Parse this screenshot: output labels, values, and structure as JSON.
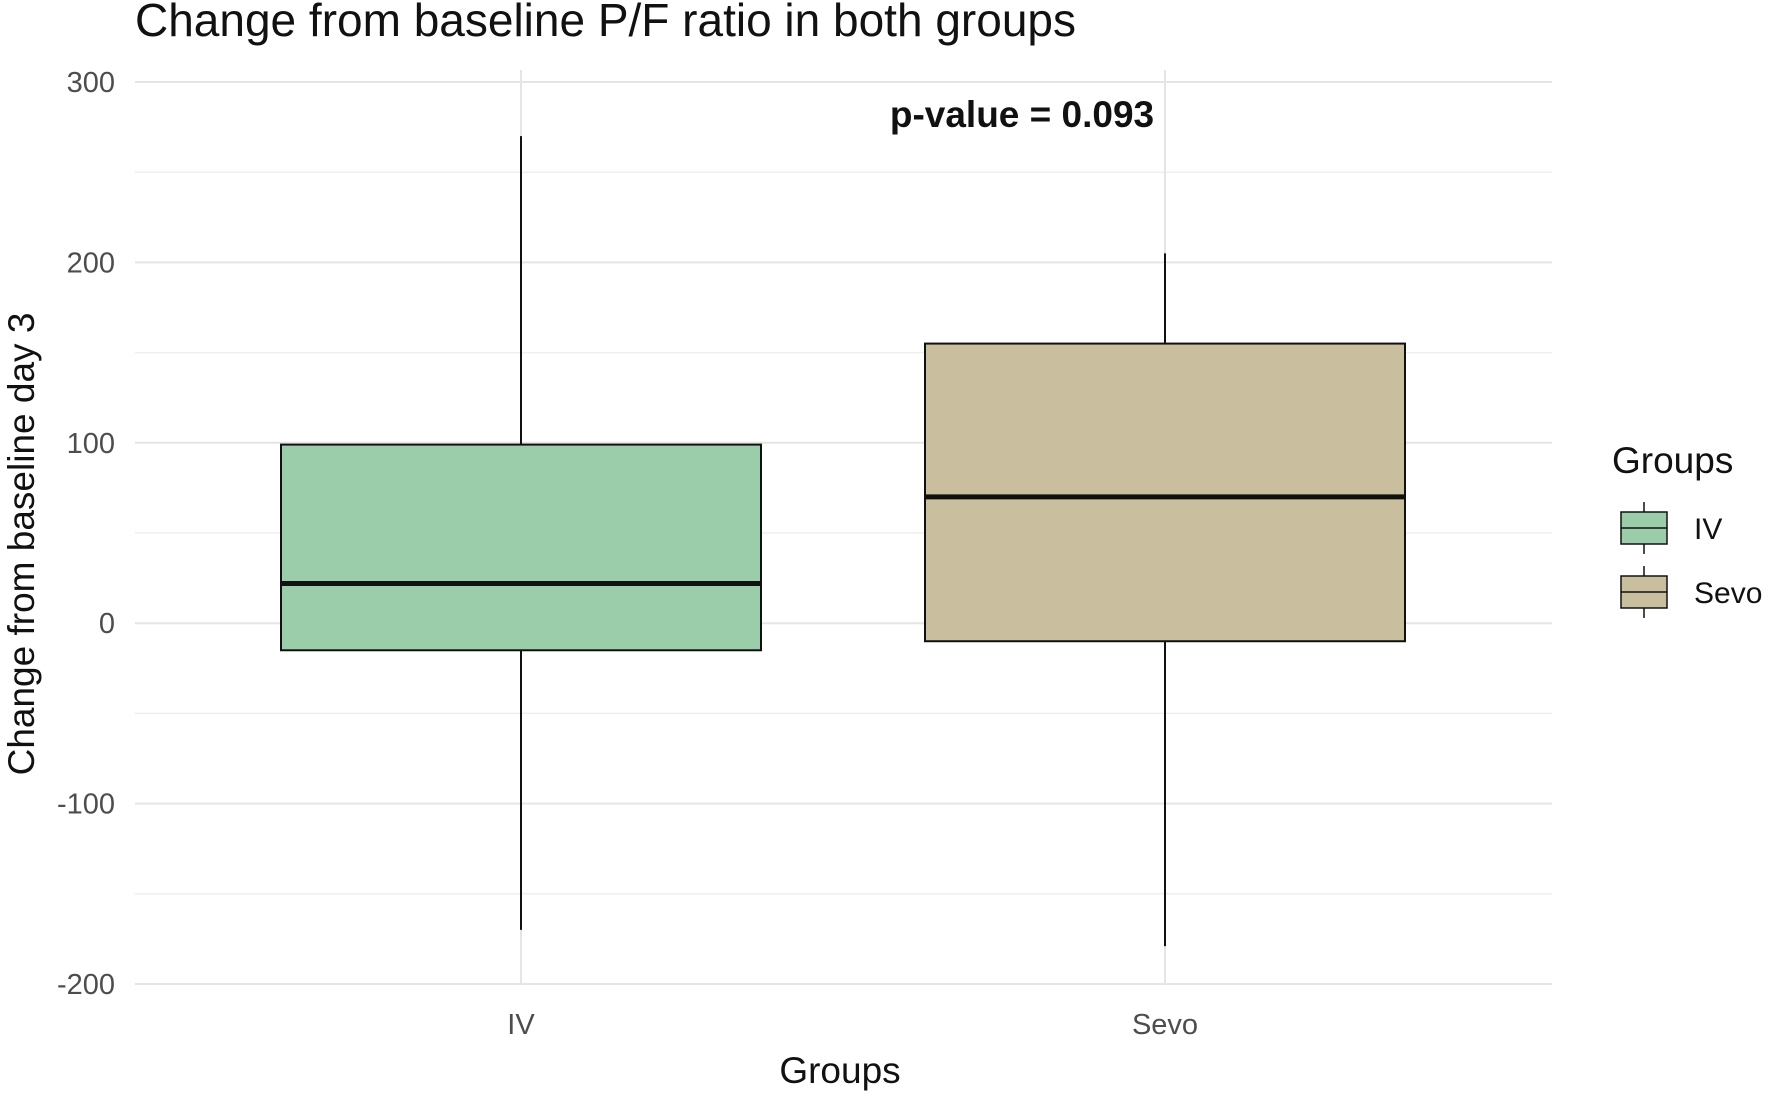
{
  "chart_data": {
    "type": "boxplot",
    "title": "Change from baseline P/F ratio in both groups",
    "xlabel": "Groups",
    "ylabel": "Change from baseline day 3",
    "ylim": [
      -200,
      300
    ],
    "yticks": [
      -200,
      -100,
      0,
      100,
      200,
      300
    ],
    "grid": true,
    "categories": [
      "IV",
      "Sevo"
    ],
    "series": [
      {
        "name": "IV",
        "min": -170,
        "q1": -15,
        "median": 22,
        "q3": 99,
        "max": 270,
        "color": "#9ccdab"
      },
      {
        "name": "Sevo",
        "min": -179,
        "q1": -10,
        "median": 70,
        "q3": 155,
        "max": 205,
        "color": "#c9bf9e"
      }
    ],
    "annotation": "p-value = 0.093",
    "legend": {
      "title": "Groups",
      "position": "right",
      "items": [
        "IV",
        "Sevo"
      ]
    }
  }
}
